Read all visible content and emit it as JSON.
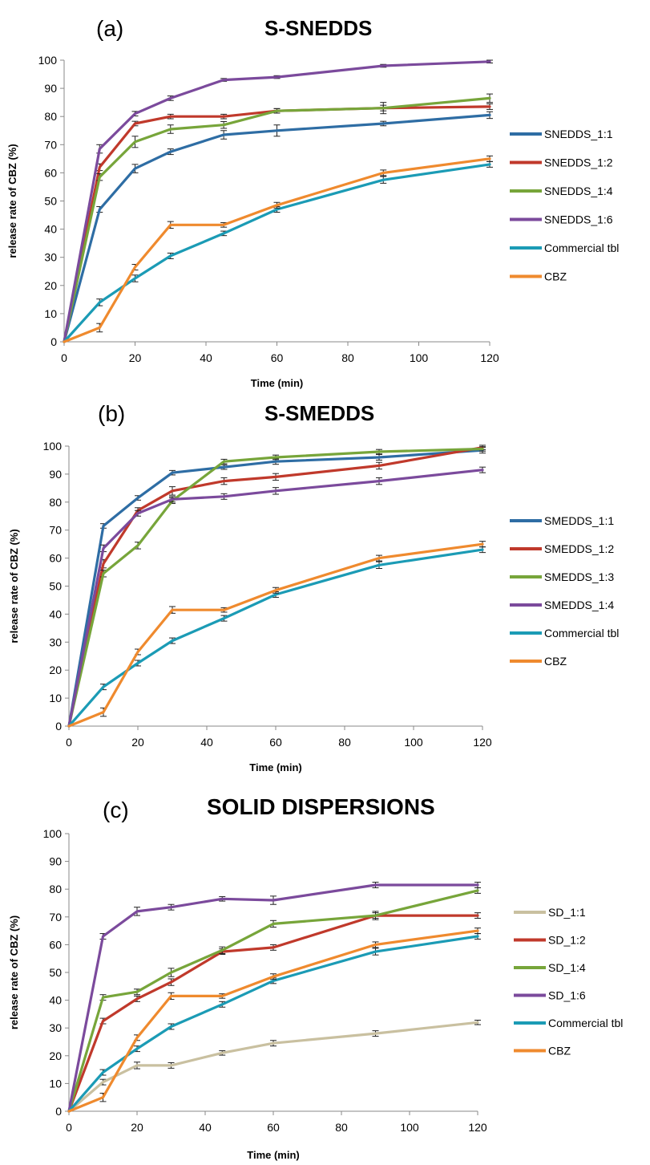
{
  "chart_data": [
    {
      "type": "line",
      "panel_label": "(a)",
      "title": "S-SNEDDS",
      "xlabel": "Time (min)",
      "ylabel": "release rate of CBZ (%)",
      "xlim": [
        0,
        120
      ],
      "ylim": [
        0,
        100
      ],
      "x_ticks": [
        0,
        20,
        40,
        60,
        80,
        100,
        120
      ],
      "y_ticks": [
        0,
        10,
        20,
        30,
        40,
        50,
        60,
        70,
        80,
        90,
        100
      ],
      "grid": false,
      "legend_position": "right",
      "x": [
        0,
        10,
        20,
        30,
        45,
        60,
        90,
        120
      ],
      "series": [
        {
          "name": "SNEDDS_1:1",
          "color": "#2e6da4",
          "values": [
            0,
            47,
            61.5,
            67.5,
            73.5,
            75,
            77.5,
            80.5
          ],
          "errors": [
            0,
            1,
            1.5,
            1,
            1.5,
            2,
            0.8,
            1.2
          ]
        },
        {
          "name": "SNEDDS_1:2",
          "color": "#c0392b",
          "values": [
            0,
            62,
            77.5,
            80,
            80,
            82,
            83,
            83.5
          ],
          "errors": [
            0,
            1.2,
            0.8,
            0.8,
            0.8,
            0.8,
            1,
            1
          ]
        },
        {
          "name": "SNEDDS_1:4",
          "color": "#77a53a",
          "values": [
            0,
            58.5,
            71,
            75.5,
            77,
            82,
            83,
            86.5
          ],
          "errors": [
            0,
            1.2,
            2,
            1.5,
            1.2,
            0.8,
            2,
            1.5
          ]
        },
        {
          "name": "SNEDDS_1:6",
          "color": "#7b4a9c",
          "values": [
            0,
            68.5,
            81,
            86.5,
            93,
            94,
            98,
            99.5
          ],
          "errors": [
            0,
            1.5,
            0.8,
            0.8,
            0.5,
            0.5,
            0.5,
            0.5
          ]
        },
        {
          "name": "Commercial tbl",
          "color": "#1b9bb5",
          "values": [
            0,
            14,
            22.5,
            30.5,
            38.5,
            47,
            57.5,
            63
          ],
          "errors": [
            0,
            1.2,
            1.2,
            1,
            0.8,
            1,
            1.2,
            1
          ]
        },
        {
          "name": "CBZ",
          "color": "#ef8a2e",
          "values": [
            0,
            5,
            26.5,
            41.5,
            41.5,
            48.5,
            60,
            65
          ],
          "errors": [
            0,
            1.5,
            1,
            1.2,
            0.8,
            1,
            1,
            1
          ]
        }
      ]
    },
    {
      "type": "line",
      "panel_label": "(b)",
      "title": "S-SMEDDS",
      "xlabel": "Time (min)",
      "ylabel": "release rate of CBZ (%)",
      "xlim": [
        0,
        120
      ],
      "ylim": [
        0,
        100
      ],
      "x_ticks": [
        0,
        20,
        40,
        60,
        80,
        100,
        120
      ],
      "y_ticks": [
        0,
        10,
        20,
        30,
        40,
        50,
        60,
        70,
        80,
        90,
        100
      ],
      "grid": false,
      "legend_position": "right",
      "x": [
        0,
        10,
        20,
        30,
        45,
        60,
        90,
        120
      ],
      "series": [
        {
          "name": "SMEDDS_1:1",
          "color": "#2e6da4",
          "values": [
            0,
            71.5,
            81.5,
            90.5,
            92.5,
            94.5,
            96,
            98.5
          ],
          "errors": [
            0,
            0.8,
            0.8,
            0.8,
            0.8,
            1,
            1,
            1
          ]
        },
        {
          "name": "SMEDDS_1:2",
          "color": "#c0392b",
          "values": [
            0,
            58,
            77,
            84,
            87.5,
            89,
            93,
            99.5
          ],
          "errors": [
            0,
            1.5,
            1,
            1.5,
            1.2,
            1.2,
            1.2,
            0.8
          ]
        },
        {
          "name": "SMEDDS_1:3",
          "color": "#77a53a",
          "values": [
            0,
            54.5,
            64.5,
            80.5,
            94.5,
            96,
            98,
            99
          ],
          "errors": [
            0,
            1.2,
            1.2,
            1,
            0.8,
            0.8,
            0.8,
            0.8
          ]
        },
        {
          "name": "SMEDDS_1:4",
          "color": "#7b4a9c",
          "values": [
            0,
            63.5,
            76,
            81,
            82,
            84,
            87.5,
            91.5
          ],
          "errors": [
            0,
            1.2,
            1,
            1,
            1,
            1.2,
            1.2,
            1
          ]
        },
        {
          "name": "Commercial tbl",
          "color": "#1b9bb5",
          "values": [
            0,
            14,
            22.5,
            30.5,
            38.5,
            47,
            57.5,
            63
          ],
          "errors": [
            0,
            1,
            1,
            1,
            1,
            1,
            1.2,
            1
          ]
        },
        {
          "name": "CBZ",
          "color": "#ef8a2e",
          "values": [
            0,
            5,
            26.5,
            41.5,
            41.5,
            48.5,
            60,
            65
          ],
          "errors": [
            0,
            1.5,
            1,
            1.2,
            0.8,
            1,
            1,
            1
          ]
        }
      ]
    },
    {
      "type": "line",
      "panel_label": "(c)",
      "title": "SOLID DISPERSIONS",
      "xlabel": "Time (min)",
      "ylabel": "release rate of CBZ (%)",
      "xlim": [
        0,
        120
      ],
      "ylim": [
        0,
        100
      ],
      "x_ticks": [
        0,
        20,
        40,
        60,
        80,
        100,
        120
      ],
      "y_ticks": [
        0,
        10,
        20,
        30,
        40,
        50,
        60,
        70,
        80,
        90,
        100
      ],
      "grid": false,
      "legend_position": "right",
      "x": [
        0,
        10,
        20,
        30,
        45,
        60,
        90,
        120
      ],
      "series": [
        {
          "name": "SD_1:1",
          "color": "#c9c0a0",
          "values": [
            0,
            10.5,
            16.5,
            16.5,
            21,
            24.5,
            28,
            32
          ],
          "errors": [
            0,
            1,
            1.2,
            1,
            0.8,
            1,
            1,
            0.8
          ]
        },
        {
          "name": "SD_1:2",
          "color": "#c0392b",
          "values": [
            0,
            32.5,
            40.5,
            46.5,
            57.5,
            59,
            70.5,
            70.5
          ],
          "errors": [
            0,
            1,
            1,
            1.2,
            1,
            1,
            1,
            1
          ]
        },
        {
          "name": "SD_1:4",
          "color": "#77a53a",
          "values": [
            0,
            41,
            43,
            50,
            58,
            67.5,
            70.5,
            79.5
          ],
          "errors": [
            0,
            1,
            1,
            1.5,
            1.2,
            1.2,
            1.5,
            1
          ]
        },
        {
          "name": "SD_1:6",
          "color": "#7b4a9c",
          "values": [
            0,
            63,
            72,
            73.5,
            76.5,
            76,
            81.5,
            81.5
          ],
          "errors": [
            0,
            1,
            1.5,
            1,
            0.8,
            1.5,
            1,
            1
          ]
        },
        {
          "name": "Commercial tbl",
          "color": "#1b9bb5",
          "values": [
            0,
            14,
            22.5,
            30.5,
            38.5,
            47,
            57.5,
            63
          ],
          "errors": [
            0,
            1,
            1,
            1,
            1,
            1,
            1.2,
            1
          ]
        },
        {
          "name": "CBZ",
          "color": "#ef8a2e",
          "values": [
            0,
            5,
            26.5,
            41.5,
            41.5,
            48.5,
            60,
            65
          ],
          "errors": [
            0,
            1.5,
            1,
            1.2,
            0.8,
            1,
            1,
            1
          ]
        }
      ]
    }
  ]
}
